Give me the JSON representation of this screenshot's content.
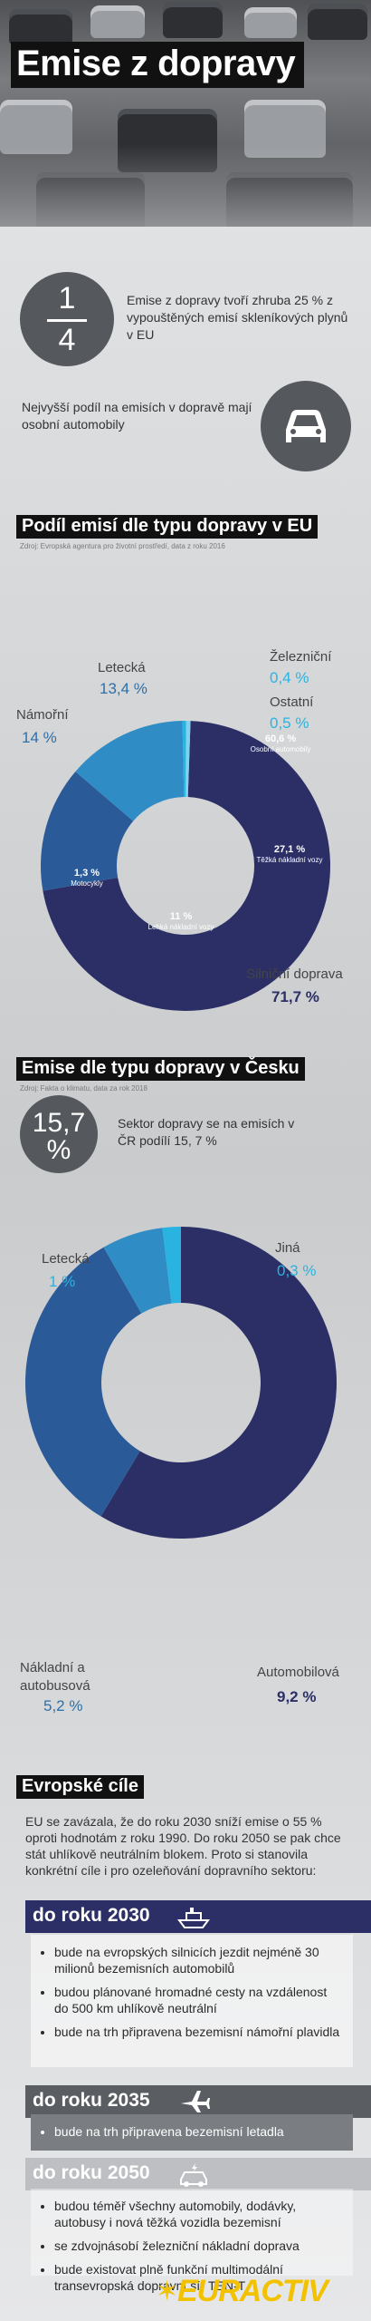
{
  "hero": {
    "title": "Emise z dopravy"
  },
  "intro": {
    "fraction_num": "1",
    "fraction_den": "4",
    "text1": "Emise z dopravy tvoří zhruba 25 % z vypouštěných emisí skleníkových plynů v EU",
    "text2": "Nejvyšší podíl na emisích v dopravě mají osobní automobily",
    "car_icon": "car-icon"
  },
  "eu": {
    "title": "Podíl emisí dle typu dopravy v EU",
    "source": "Zdroj: Evropská agentura pro životní prostředí, data z roku 2016",
    "labels": {
      "letecka": "Letecká",
      "letecka_val": "13,4 %",
      "namorni": "Námořní",
      "namorni_val": "14 %",
      "zeleznicni": "Železniční",
      "zeleznicni_val": "0,4 %",
      "ostatni": "Ostatní",
      "ostatni_val": "0,5 %",
      "silnicni": "Silniční doprava",
      "silnicni_val": "71,7 %"
    },
    "inner": {
      "osobni_val": "60,6 %",
      "osobni": "Osobní automobily",
      "tezke_val": "27,1 %",
      "tezke": "Těžká nákladní vozy",
      "lehke_val": "11 %",
      "lehke": "Lehká nákladní vozy",
      "moto_val": "1,3 %",
      "moto": "Motocykly"
    }
  },
  "chart_data": [
    {
      "type": "pie",
      "title": "Podíl emisí dle typu dopravy v EU",
      "categories": [
        "Silniční doprava",
        "Námořní",
        "Letecká",
        "Železniční",
        "Ostatní"
      ],
      "values": [
        71.7,
        14,
        13.4,
        0.4,
        0.5
      ],
      "colors": [
        "#2b2f66",
        "#2a5a97",
        "#2f8cc4",
        "#2ab3e1",
        "#7fd3ef"
      ],
      "sub_breakdown": {
        "parent": "Silniční doprava",
        "categories": [
          "Osobní automobily",
          "Těžká nákladní vozy",
          "Lehká nákladní vozy",
          "Motocykly"
        ],
        "values": [
          60.6,
          27.1,
          11,
          1.3
        ]
      }
    },
    {
      "type": "pie",
      "title": "Emise dle typu dopravy v Česku",
      "categories": [
        "Automobilová",
        "Nákladní a autobusová",
        "Letecká",
        "Jiná"
      ],
      "values": [
        9.2,
        5.2,
        1,
        0.3
      ],
      "colors": [
        "#2b2f66",
        "#2a5a97",
        "#2f8cc4",
        "#2ab3e1"
      ]
    }
  ],
  "cz": {
    "title": "Emise dle typu dopravy v Česku",
    "source": "Zdroj: Fakta o klimatu, data za rok 2018",
    "big_value": "15,7 %",
    "text": "Sektor dopravy se na emisích v ČR podílí 15, 7 %",
    "labels": {
      "letecka": "Letecká",
      "letecka_val": "1 %",
      "jina": "Jiná",
      "jina_val": "0,3 %",
      "nakladni": "Nákladní a autobusová",
      "nakladni_val": "5,2 %",
      "automobilova": "Automobilová",
      "automobilova_val": "9,2 %"
    }
  },
  "goals": {
    "title": "Evropské cíle",
    "intro": "EU se zavázala, že do roku 2030 sníží emise o 55 % oproti hodnotám z roku 1990. Do roku 2050 se pak chce stát uhlíkově neutrálním blokem. Proto si stanovila konkrétní cíle i pro ozeleňování dopravního sektoru:",
    "y2030": {
      "label": "do roku 2030",
      "icon": "ship-icon",
      "items": [
        "bude na evropských silnicích jezdit nejméně 30 milionů bezemisních automobilů",
        "budou plánované hromadné cesty na vzdálenost do 500 km uhlíkově neutrální",
        "bude na trh připravena bezemisní námořní plavidla"
      ]
    },
    "y2035": {
      "label": "do roku 2035",
      "icon": "airplane-icon",
      "items": [
        "bude na trh připravena bezemisní letadla"
      ]
    },
    "y2050": {
      "label": "do roku 2050",
      "icon": "electric-car-icon",
      "items": [
        "budou téměř všechny automobily, dodávky, autobusy i nová těžká vozidla bezemisní",
        "se zdvojnásobí železniční nákladní doprava",
        "bude existovat plně funkční multimodální transevropská dopravní síť TEN-T"
      ]
    }
  },
  "logo": {
    "text": "EURACTIV"
  }
}
